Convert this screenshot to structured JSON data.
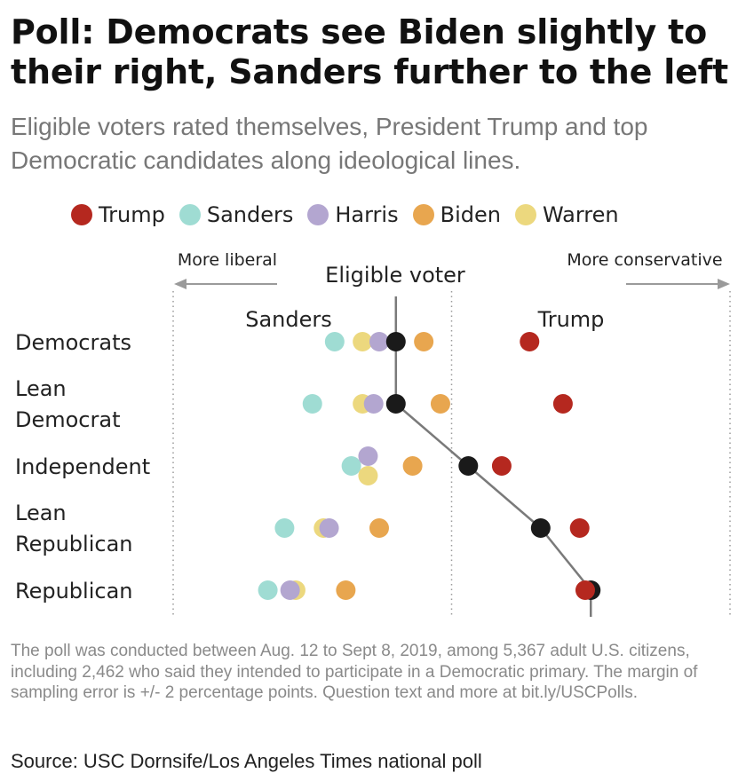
{
  "title": "Poll: Democrats see Biden slightly to their right, Sanders further to the left",
  "subtitle": "Eligible voters rated themselves, President Trump and top Democratic candidates along ideological lines.",
  "legend": [
    {
      "name": "Trump",
      "color": "#b5281f"
    },
    {
      "name": "Sanders",
      "color": "#9fdcd3"
    },
    {
      "name": "Harris",
      "color": "#b3a6d0"
    },
    {
      "name": "Biden",
      "color": "#e8a64f"
    },
    {
      "name": "Warren",
      "color": "#ecd87e"
    }
  ],
  "annotations": {
    "more_liberal": "More liberal",
    "more_conservative": "More conservative",
    "eligible_voter": "Eligible voter",
    "sanders_label": "Sanders",
    "trump_label": "Trump"
  },
  "chart_data": {
    "type": "scatter",
    "scale": "ideology, liberal (left) to conservative (right)",
    "xlim": [
      0,
      100
    ],
    "gridlines": [
      0,
      50,
      100
    ],
    "categories": [
      "Democrats",
      "Lean Democrat",
      "Independent",
      "Lean Republican",
      "Republican"
    ],
    "category_labels": [
      [
        "Democrats"
      ],
      [
        "Lean",
        "Democrat"
      ],
      [
        "Independent"
      ],
      [
        "Lean",
        "Republican"
      ],
      [
        "Republican"
      ]
    ],
    "eligible_voter_color": "#1a1a1a",
    "series": [
      {
        "name": "Sanders",
        "color": "#9fdcd3",
        "values": [
          29,
          25,
          32,
          20,
          17
        ]
      },
      {
        "name": "Warren",
        "color": "#ecd87e",
        "values": [
          34,
          34,
          35,
          27,
          22
        ]
      },
      {
        "name": "Harris",
        "color": "#b3a6d0",
        "values": [
          37,
          36,
          35,
          28,
          21
        ]
      },
      {
        "name": "Eligible voter",
        "color": "#1a1a1a",
        "values": [
          40,
          40,
          53,
          66,
          75
        ]
      },
      {
        "name": "Biden",
        "color": "#e8a64f",
        "values": [
          45,
          48,
          43,
          37,
          31
        ]
      },
      {
        "name": "Trump",
        "color": "#b5281f",
        "values": [
          64,
          70,
          59,
          73,
          74
        ]
      }
    ]
  },
  "notes": "The poll was conducted between Aug. 12 to Sept 8, 2019, among 5,367 adult U.S. citizens, including 2,462 who said they intended to participate in a Democratic primary. The margin of sampling error is +/- 2 percentage points. Question text and more at bit.ly/USCPolls.",
  "source": "Source: USC Dornsife/Los Angeles Times national poll"
}
